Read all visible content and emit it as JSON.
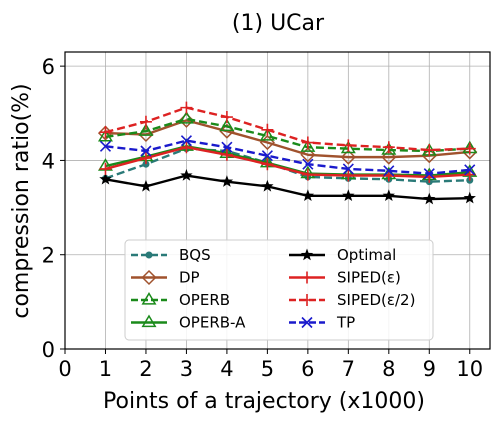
{
  "chart_data": {
    "type": "line",
    "title": "(1) UCar",
    "xlabel": "Points of a trajectory (x1000)",
    "ylabel": "compression ratio(%)",
    "xlim": [
      0,
      10.5
    ],
    "ylim": [
      0,
      6.3
    ],
    "xticks": [
      "0",
      "1",
      "2",
      "3",
      "4",
      "5",
      "6",
      "7",
      "8",
      "9",
      "10"
    ],
    "yticks": [
      "0",
      "2",
      "4",
      "6"
    ],
    "grid": true,
    "legend_position": "lower-center",
    "x": [
      1,
      2,
      3,
      4,
      5,
      6,
      7,
      8,
      9,
      10
    ],
    "series": [
      {
        "name": "BQS",
        "color": "#2a7a78",
        "dash": "dashed",
        "marker": "dot",
        "values": [
          3.62,
          3.92,
          4.25,
          4.2,
          3.95,
          3.65,
          3.62,
          3.6,
          3.55,
          3.58
        ]
      },
      {
        "name": "DP",
        "color": "#a0522d",
        "dash": "solid",
        "marker": "diamond",
        "values": [
          4.58,
          4.55,
          4.85,
          4.62,
          4.38,
          4.12,
          4.07,
          4.07,
          4.1,
          4.18
        ]
      },
      {
        "name": "OPERB",
        "color": "#1a8a1a",
        "dash": "dashed",
        "marker": "triangle",
        "values": [
          4.5,
          4.62,
          4.88,
          4.72,
          4.52,
          4.28,
          4.25,
          4.22,
          4.2,
          4.25
        ]
      },
      {
        "name": "OPERB-A",
        "color": "#1a8a1a",
        "dash": "solid",
        "marker": "triangle",
        "values": [
          3.88,
          4.08,
          4.3,
          4.15,
          3.95,
          3.72,
          3.7,
          3.7,
          3.68,
          3.75
        ]
      },
      {
        "name": "Optimal",
        "color": "#000000",
        "dash": "solid",
        "marker": "star",
        "values": [
          3.6,
          3.45,
          3.68,
          3.55,
          3.45,
          3.25,
          3.25,
          3.25,
          3.18,
          3.2
        ]
      },
      {
        "name": "SIPED(ε)",
        "color": "#dd2222",
        "dash": "solid",
        "marker": "plus",
        "values": [
          3.82,
          4.05,
          4.28,
          4.12,
          3.92,
          3.7,
          3.68,
          3.68,
          3.65,
          3.7
        ]
      },
      {
        "name": "SIPED(ε/2)",
        "color": "#dd2222",
        "dash": "dashed",
        "marker": "plus",
        "values": [
          4.6,
          4.82,
          5.12,
          4.92,
          4.65,
          4.38,
          4.32,
          4.28,
          4.22,
          4.25
        ]
      },
      {
        "name": "TP",
        "color": "#1a1acc",
        "dash": "dashed",
        "marker": "x",
        "values": [
          4.3,
          4.2,
          4.42,
          4.28,
          4.1,
          3.92,
          3.82,
          3.78,
          3.72,
          3.8
        ]
      }
    ]
  }
}
